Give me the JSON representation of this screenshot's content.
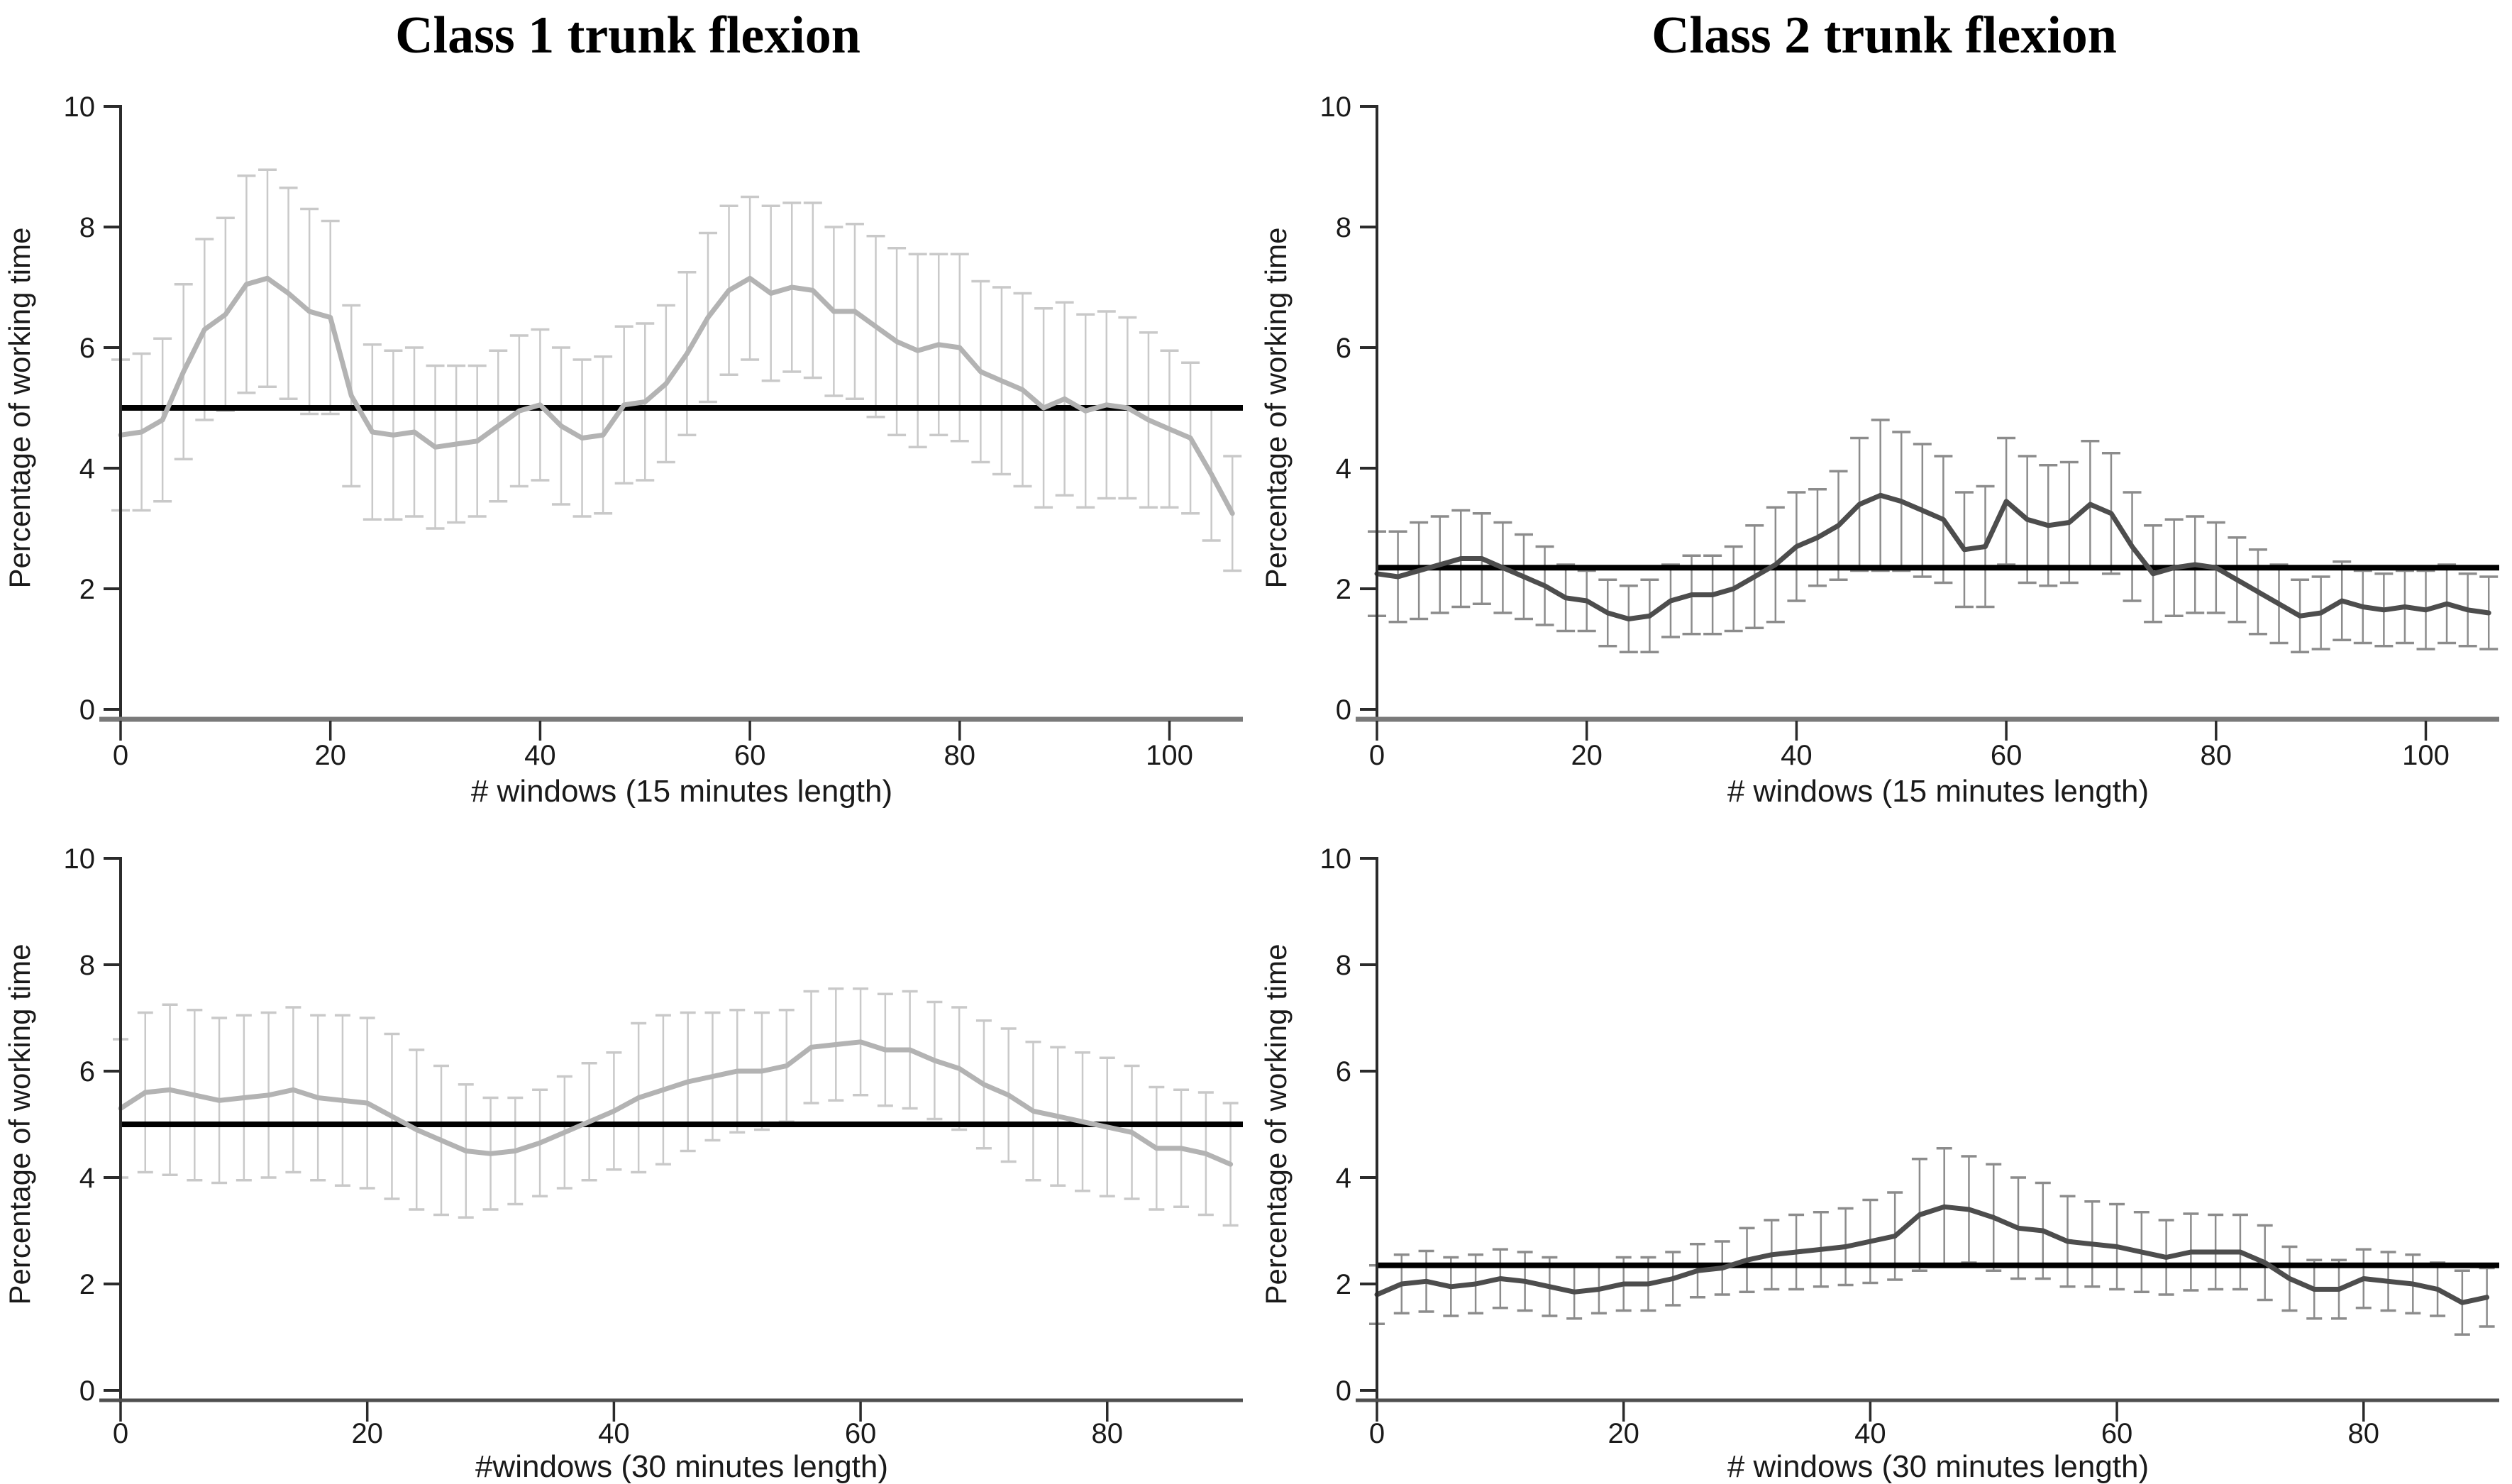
{
  "figure": {
    "background": "#ffffff",
    "description": "Four panels of mean trunk flexion percentage with error bars versus number of analysis windows"
  },
  "chart_data": [
    {
      "id": "class1-15min",
      "type": "line",
      "title": "Class 1 trunk flexion",
      "xlabel": "# windows (15 minutes length)",
      "ylabel": "Percentage of working time",
      "xlim": [
        0,
        107
      ],
      "ylim": [
        0,
        10
      ],
      "xticks": [
        0,
        20,
        40,
        60,
        80,
        100
      ],
      "yticks": [
        0,
        2,
        4,
        6,
        8,
        10
      ],
      "reference_line": 5,
      "colors": {
        "line": "#b3b3b3",
        "error": "#c9c9c9",
        "reference": "#000000"
      },
      "x": [
        0,
        2,
        4,
        6,
        8,
        10,
        12,
        14,
        16,
        18,
        20,
        22,
        24,
        26,
        28,
        30,
        32,
        34,
        36,
        38,
        40,
        42,
        44,
        46,
        48,
        50,
        52,
        54,
        56,
        58,
        60,
        62,
        64,
        66,
        68,
        70,
        72,
        74,
        76,
        78,
        80,
        82,
        84,
        86,
        88,
        90,
        92,
        94,
        96,
        98,
        100,
        102,
        104,
        106
      ],
      "mean": [
        4.55,
        4.6,
        4.8,
        5.6,
        6.3,
        6.55,
        7.05,
        7.15,
        6.9,
        6.6,
        6.5,
        5.2,
        4.6,
        4.55,
        4.6,
        4.35,
        4.4,
        4.45,
        4.7,
        4.95,
        5.05,
        4.7,
        4.5,
        4.55,
        5.05,
        5.1,
        5.4,
        5.9,
        6.5,
        6.95,
        7.15,
        6.9,
        7.0,
        6.95,
        6.6,
        6.6,
        6.35,
        6.1,
        5.95,
        6.05,
        6.0,
        5.6,
        5.45,
        5.3,
        5.0,
        5.15,
        4.95,
        5.05,
        5.0,
        4.8,
        4.65,
        4.5,
        3.9,
        3.25
      ],
      "err": [
        1.25,
        1.3,
        1.35,
        1.45,
        1.5,
        1.6,
        1.8,
        1.8,
        1.75,
        1.7,
        1.6,
        1.5,
        1.45,
        1.4,
        1.4,
        1.35,
        1.3,
        1.25,
        1.25,
        1.25,
        1.25,
        1.3,
        1.3,
        1.3,
        1.3,
        1.3,
        1.3,
        1.35,
        1.4,
        1.4,
        1.35,
        1.45,
        1.4,
        1.45,
        1.4,
        1.45,
        1.5,
        1.55,
        1.6,
        1.5,
        1.55,
        1.5,
        1.55,
        1.6,
        1.65,
        1.6,
        1.6,
        1.55,
        1.5,
        1.45,
        1.3,
        1.25,
        1.1,
        0.95
      ]
    },
    {
      "id": "class2-15min",
      "type": "line",
      "title": "Class 2 trunk flexion",
      "xlabel": "# windows (15 minutes length)",
      "ylabel": "Percentage of working time",
      "xlim": [
        0,
        107
      ],
      "ylim": [
        0,
        10
      ],
      "xticks": [
        0,
        20,
        40,
        60,
        80,
        100
      ],
      "yticks": [
        0,
        2,
        4,
        6,
        8,
        10
      ],
      "reference_line": 2.35,
      "colors": {
        "line": "#4d4d4d",
        "error": "#8c8c8c",
        "reference": "#000000"
      },
      "x": [
        0,
        2,
        4,
        6,
        8,
        10,
        12,
        14,
        16,
        18,
        20,
        22,
        24,
        26,
        28,
        30,
        32,
        34,
        36,
        38,
        40,
        42,
        44,
        46,
        48,
        50,
        52,
        54,
        56,
        58,
        60,
        62,
        64,
        66,
        68,
        70,
        72,
        74,
        76,
        78,
        80,
        82,
        84,
        86,
        88,
        90,
        92,
        94,
        96,
        98,
        100,
        102,
        104,
        106
      ],
      "mean": [
        2.25,
        2.2,
        2.3,
        2.4,
        2.5,
        2.5,
        2.35,
        2.2,
        2.05,
        1.85,
        1.8,
        1.6,
        1.5,
        1.55,
        1.8,
        1.9,
        1.9,
        2.0,
        2.2,
        2.4,
        2.7,
        2.85,
        3.05,
        3.4,
        3.55,
        3.45,
        3.3,
        3.15,
        2.65,
        2.7,
        3.45,
        3.15,
        3.05,
        3.1,
        3.4,
        3.25,
        2.7,
        2.25,
        2.35,
        2.4,
        2.35,
        2.15,
        1.95,
        1.75,
        1.55,
        1.6,
        1.8,
        1.7,
        1.65,
        1.7,
        1.65,
        1.75,
        1.65,
        1.6
      ],
      "err": [
        0.7,
        0.75,
        0.8,
        0.8,
        0.8,
        0.75,
        0.75,
        0.7,
        0.65,
        0.55,
        0.5,
        0.55,
        0.55,
        0.6,
        0.6,
        0.65,
        0.65,
        0.7,
        0.85,
        0.95,
        0.9,
        0.8,
        0.9,
        1.1,
        1.25,
        1.15,
        1.1,
        1.05,
        0.95,
        1.0,
        1.05,
        1.05,
        1.0,
        1.0,
        1.05,
        1.0,
        0.9,
        0.8,
        0.8,
        0.8,
        0.75,
        0.7,
        0.7,
        0.65,
        0.6,
        0.6,
        0.65,
        0.6,
        0.6,
        0.6,
        0.65,
        0.65,
        0.6,
        0.6
      ]
    },
    {
      "id": "class1-30min",
      "type": "line",
      "title": null,
      "xlabel": "#windows (30 minutes length)",
      "ylabel": "Percentage of working time",
      "xlim": [
        0,
        91
      ],
      "ylim": [
        0,
        10
      ],
      "xticks": [
        0,
        20,
        40,
        60,
        80
      ],
      "yticks": [
        0,
        2,
        4,
        6,
        8,
        10
      ],
      "reference_line": 5,
      "colors": {
        "line": "#b3b3b3",
        "error": "#c9c9c9",
        "reference": "#000000"
      },
      "x": [
        0,
        2,
        4,
        6,
        8,
        10,
        12,
        14,
        16,
        18,
        20,
        22,
        24,
        26,
        28,
        30,
        32,
        34,
        36,
        38,
        40,
        42,
        44,
        46,
        48,
        50,
        52,
        54,
        56,
        58,
        60,
        62,
        64,
        66,
        68,
        70,
        72,
        74,
        76,
        78,
        80,
        82,
        84,
        86,
        88,
        90
      ],
      "mean": [
        5.3,
        5.6,
        5.65,
        5.55,
        5.45,
        5.5,
        5.55,
        5.65,
        5.5,
        5.45,
        5.4,
        5.15,
        4.9,
        4.7,
        4.5,
        4.45,
        4.5,
        4.65,
        4.85,
        5.05,
        5.25,
        5.5,
        5.65,
        5.8,
        5.9,
        6.0,
        6.0,
        6.1,
        6.45,
        6.5,
        6.55,
        6.4,
        6.4,
        6.2,
        6.05,
        5.75,
        5.55,
        5.25,
        5.15,
        5.05,
        4.95,
        4.85,
        4.55,
        4.55,
        4.45,
        4.25
      ],
      "err": [
        1.3,
        1.5,
        1.6,
        1.6,
        1.55,
        1.55,
        1.55,
        1.55,
        1.55,
        1.6,
        1.6,
        1.55,
        1.5,
        1.4,
        1.25,
        1.05,
        1.0,
        1.0,
        1.05,
        1.1,
        1.1,
        1.4,
        1.4,
        1.3,
        1.2,
        1.15,
        1.1,
        1.05,
        1.05,
        1.05,
        1.0,
        1.05,
        1.1,
        1.1,
        1.15,
        1.2,
        1.25,
        1.3,
        1.3,
        1.3,
        1.3,
        1.25,
        1.15,
        1.1,
        1.15,
        1.15
      ]
    },
    {
      "id": "class2-30min",
      "type": "line",
      "title": null,
      "xlabel": "# windows (30 minutes length)",
      "ylabel": "Percentage of working time",
      "xlim": [
        0,
        91
      ],
      "ylim": [
        0,
        10
      ],
      "xticks": [
        0,
        20,
        40,
        60,
        80
      ],
      "yticks": [
        0,
        2,
        4,
        6,
        8,
        10
      ],
      "reference_line": 2.35,
      "colors": {
        "line": "#4d4d4d",
        "error": "#8c8c8c",
        "reference": "#000000"
      },
      "x": [
        0,
        2,
        4,
        6,
        8,
        10,
        12,
        14,
        16,
        18,
        20,
        22,
        24,
        26,
        28,
        30,
        32,
        34,
        36,
        38,
        40,
        42,
        44,
        46,
        48,
        50,
        52,
        54,
        56,
        58,
        60,
        62,
        64,
        66,
        68,
        70,
        72,
        74,
        76,
        78,
        80,
        82,
        84,
        86,
        88,
        90
      ],
      "mean": [
        1.8,
        2.0,
        2.05,
        1.95,
        2.0,
        2.1,
        2.05,
        1.95,
        1.85,
        1.9,
        2.0,
        2.0,
        2.1,
        2.25,
        2.3,
        2.45,
        2.55,
        2.6,
        2.65,
        2.7,
        2.8,
        2.9,
        3.3,
        3.45,
        3.4,
        3.25,
        3.05,
        3.0,
        2.8,
        2.75,
        2.7,
        2.6,
        2.5,
        2.6,
        2.6,
        2.6,
        2.4,
        2.1,
        1.9,
        1.9,
        2.1,
        2.05,
        2.0,
        1.9,
        1.65,
        1.75
      ],
      "err": [
        0.55,
        0.55,
        0.57,
        0.55,
        0.55,
        0.55,
        0.55,
        0.55,
        0.5,
        0.45,
        0.5,
        0.5,
        0.5,
        0.5,
        0.5,
        0.6,
        0.65,
        0.7,
        0.7,
        0.72,
        0.78,
        0.82,
        1.05,
        1.1,
        1.0,
        1.0,
        0.95,
        0.9,
        0.85,
        0.8,
        0.8,
        0.75,
        0.7,
        0.72,
        0.7,
        0.7,
        0.7,
        0.6,
        0.55,
        0.55,
        0.55,
        0.55,
        0.55,
        0.5,
        0.6,
        0.55
      ]
    }
  ]
}
